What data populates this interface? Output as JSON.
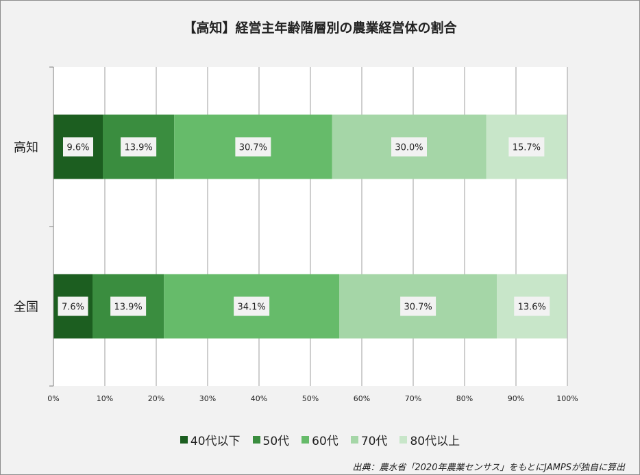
{
  "chart_data": {
    "type": "bar",
    "orientation": "horizontal",
    "stacked": "percent",
    "title": "【高知】経営主年齢階層別の農業経営体の割合",
    "categories": [
      "高知",
      "全国"
    ],
    "series": [
      {
        "name": "40代以下",
        "color": "#1c5e20",
        "values": [
          9.6,
          7.6
        ],
        "labels": [
          "9.6%",
          "7.6%"
        ]
      },
      {
        "name": "50代",
        "color": "#3a8d3f",
        "values": [
          13.9,
          13.9
        ],
        "labels": [
          "13.9%",
          "13.9%"
        ]
      },
      {
        "name": "60代",
        "color": "#66bb6a",
        "values": [
          30.7,
          34.1
        ],
        "labels": [
          "30.7%",
          "34.1%"
        ]
      },
      {
        "name": "70代",
        "color": "#a5d6a7",
        "values": [
          30.0,
          30.7
        ],
        "labels": [
          "30.0%",
          "30.7%"
        ]
      },
      {
        "name": "80代以上",
        "color": "#c8e6c9",
        "values": [
          15.7,
          13.6
        ],
        "labels": [
          "15.7%",
          "13.6%"
        ]
      }
    ],
    "xlim": [
      0,
      100
    ],
    "x_ticks": [
      "0%",
      "10%",
      "20%",
      "30%",
      "40%",
      "50%",
      "60%",
      "70%",
      "80%",
      "90%",
      "100%"
    ],
    "grid": "vertical",
    "legend_position": "bottom"
  },
  "source_note": "出典：農水省「2020年農業センサス」をもとにJAMPSが独自に算出"
}
